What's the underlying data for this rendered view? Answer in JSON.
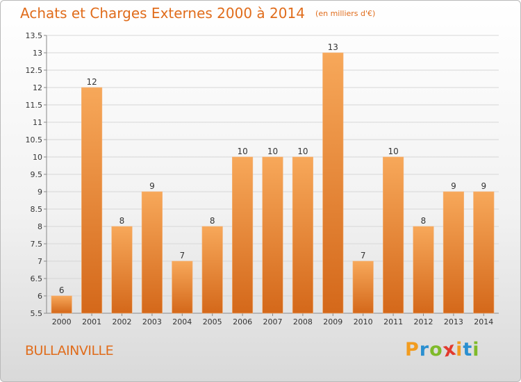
{
  "chart_data": {
    "type": "bar",
    "title": "Achats et Charges Externes 2000 à 2014",
    "subtitle": "(en milliers d'€)",
    "categories": [
      "2000",
      "2001",
      "2002",
      "2003",
      "2004",
      "2005",
      "2006",
      "2007",
      "2008",
      "2009",
      "2010",
      "2011",
      "2012",
      "2013",
      "2014"
    ],
    "values": [
      6,
      12,
      8,
      9,
      7,
      8,
      10,
      10,
      10,
      13,
      7,
      10,
      8,
      9,
      9
    ],
    "ylim": [
      5.5,
      13.5
    ],
    "yticks": [
      "5.5",
      "6",
      "6.5",
      "7",
      "7.5",
      "8",
      "8.5",
      "9",
      "9.5",
      "10",
      "10.5",
      "11",
      "11.5",
      "12",
      "12.5",
      "13",
      "13.5"
    ],
    "grid": true,
    "bar_color": "#e8832c"
  },
  "footer": {
    "commune": "BULLAINVILLE",
    "logo_letters": [
      "P",
      "r",
      "o",
      "x",
      "i",
      "t",
      "i"
    ],
    "logo_colors": [
      "#f29c1f",
      "#2a8fd0",
      "#7fba2a",
      "#e23a2e",
      "#f29c1f",
      "#2a8fd0",
      "#7fba2a"
    ]
  }
}
